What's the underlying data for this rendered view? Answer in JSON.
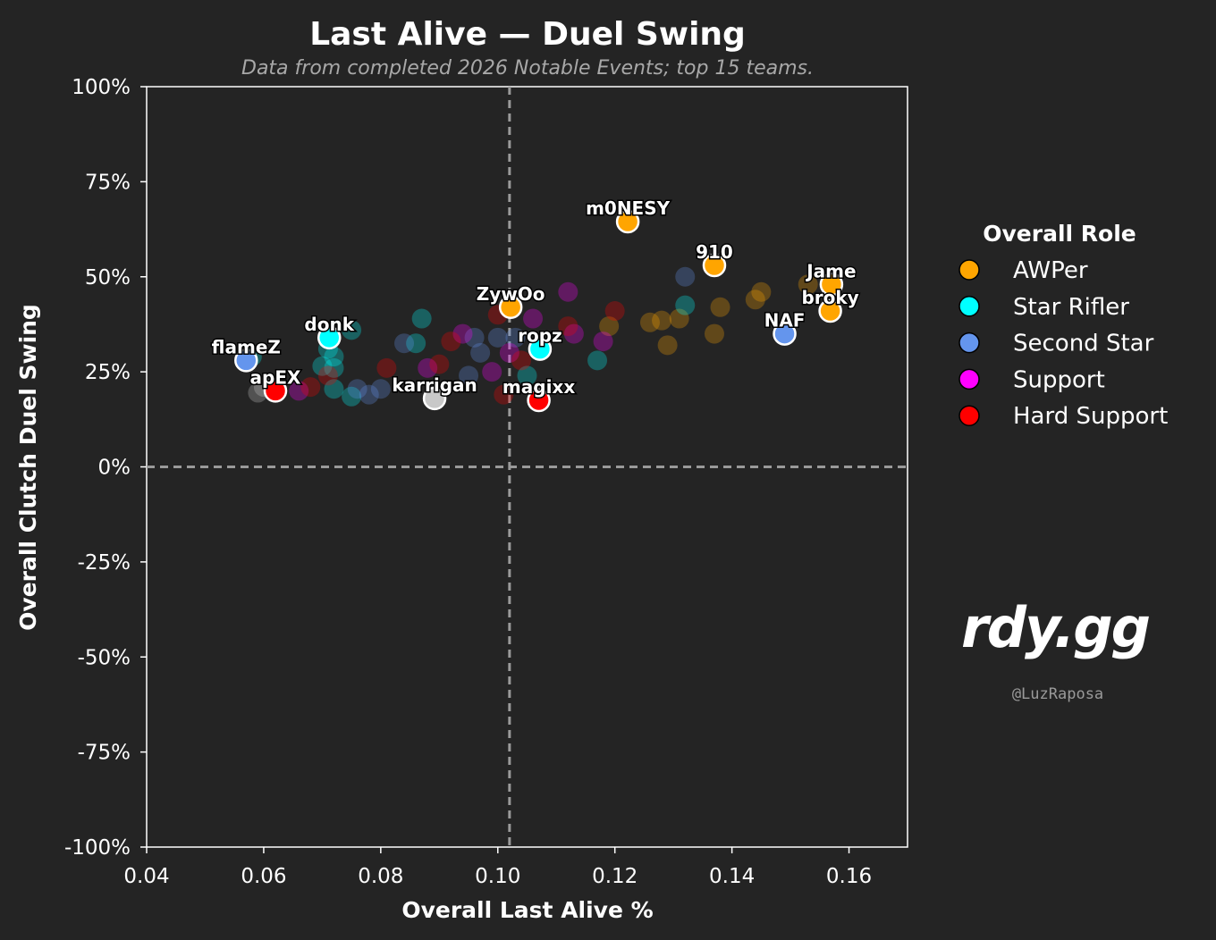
{
  "chart_data": {
    "type": "scatter",
    "title": "Last Alive — Duel Swing",
    "subtitle": "Data from completed 2026 Notable Events; top 15 teams.",
    "xlabel": "Overall Last Alive %",
    "ylabel": "Overall Clutch Duel Swing",
    "xlim": [
      0.04,
      0.17
    ],
    "ylim": [
      -1.0,
      1.0
    ],
    "x_ticks": [
      0.04,
      0.06,
      0.08,
      0.1,
      0.12,
      0.14,
      0.16
    ],
    "x_tick_labels": [
      "0.04",
      "0.06",
      "0.08",
      "0.10",
      "0.12",
      "0.14",
      "0.16"
    ],
    "y_ticks": [
      1.0,
      0.75,
      0.5,
      0.25,
      0.0,
      -0.25,
      -0.5,
      -0.75,
      -1.0
    ],
    "y_tick_labels": [
      "100%",
      "75%",
      "50%",
      "25%",
      "0%",
      "-25%",
      "-50%",
      "-75%",
      "-100%"
    ],
    "reference_lines": {
      "x": 0.102,
      "y": 0.0
    },
    "grid": false,
    "legend": {
      "title": "Overall Role",
      "placement": "right",
      "entries": [
        {
          "label": "AWPer",
          "color": "#ffa500"
        },
        {
          "label": "Star Rifler",
          "color": "#00ffff"
        },
        {
          "label": "Second Star",
          "color": "#6495ed"
        },
        {
          "label": "Support",
          "color": "#ff00ff"
        },
        {
          "label": "Hard Support",
          "color": "#ff0000"
        }
      ]
    },
    "highlighted": [
      {
        "name": "m0NESY",
        "x": 0.1222,
        "y": 0.645,
        "role": "AWPer"
      },
      {
        "name": "910",
        "x": 0.137,
        "y": 0.53,
        "role": "AWPer"
      },
      {
        "name": "Jame",
        "x": 0.157,
        "y": 0.48,
        "role": "AWPer"
      },
      {
        "name": "broky",
        "x": 0.1568,
        "y": 0.41,
        "role": "AWPer"
      },
      {
        "name": "ZywOo",
        "x": 0.1022,
        "y": 0.42,
        "role": "AWPer"
      },
      {
        "name": "NAF",
        "x": 0.149,
        "y": 0.35,
        "role": "Second Star"
      },
      {
        "name": "donk",
        "x": 0.0712,
        "y": 0.34,
        "role": "Star Rifler"
      },
      {
        "name": "ropz",
        "x": 0.1072,
        "y": 0.31,
        "role": "Star Rifler"
      },
      {
        "name": "flameZ",
        "x": 0.057,
        "y": 0.28,
        "role": "Second Star"
      },
      {
        "name": "apEX",
        "x": 0.062,
        "y": 0.2,
        "role": "Hard Support"
      },
      {
        "name": "karrigan",
        "x": 0.0892,
        "y": 0.18,
        "role": "Other"
      },
      {
        "name": "magixx",
        "x": 0.107,
        "y": 0.175,
        "role": "Hard Support"
      }
    ],
    "background_points": [
      {
        "x": 0.145,
        "y": 0.46,
        "role": "AWPer"
      },
      {
        "x": 0.144,
        "y": 0.44,
        "role": "AWPer"
      },
      {
        "x": 0.138,
        "y": 0.42,
        "role": "AWPer"
      },
      {
        "x": 0.137,
        "y": 0.35,
        "role": "AWPer"
      },
      {
        "x": 0.131,
        "y": 0.39,
        "role": "AWPer"
      },
      {
        "x": 0.128,
        "y": 0.385,
        "role": "AWPer"
      },
      {
        "x": 0.126,
        "y": 0.38,
        "role": "AWPer"
      },
      {
        "x": 0.129,
        "y": 0.32,
        "role": "AWPer"
      },
      {
        "x": 0.119,
        "y": 0.37,
        "role": "AWPer"
      },
      {
        "x": 0.153,
        "y": 0.48,
        "role": "AWPer"
      },
      {
        "x": 0.132,
        "y": 0.425,
        "role": "Star Rifler"
      },
      {
        "x": 0.117,
        "y": 0.28,
        "role": "Star Rifler"
      },
      {
        "x": 0.087,
        "y": 0.39,
        "role": "Star Rifler"
      },
      {
        "x": 0.086,
        "y": 0.325,
        "role": "Star Rifler"
      },
      {
        "x": 0.075,
        "y": 0.36,
        "role": "Star Rifler"
      },
      {
        "x": 0.071,
        "y": 0.31,
        "role": "Star Rifler"
      },
      {
        "x": 0.072,
        "y": 0.29,
        "role": "Star Rifler"
      },
      {
        "x": 0.072,
        "y": 0.26,
        "role": "Star Rifler"
      },
      {
        "x": 0.07,
        "y": 0.265,
        "role": "Star Rifler"
      },
      {
        "x": 0.072,
        "y": 0.205,
        "role": "Star Rifler"
      },
      {
        "x": 0.075,
        "y": 0.185,
        "role": "Star Rifler"
      },
      {
        "x": 0.058,
        "y": 0.29,
        "role": "Star Rifler"
      },
      {
        "x": 0.105,
        "y": 0.24,
        "role": "Star Rifler"
      },
      {
        "x": 0.132,
        "y": 0.5,
        "role": "Second Star"
      },
      {
        "x": 0.1,
        "y": 0.34,
        "role": "Second Star"
      },
      {
        "x": 0.096,
        "y": 0.34,
        "role": "Second Star"
      },
      {
        "x": 0.097,
        "y": 0.3,
        "role": "Second Star"
      },
      {
        "x": 0.084,
        "y": 0.325,
        "role": "Second Star"
      },
      {
        "x": 0.095,
        "y": 0.24,
        "role": "Second Star"
      },
      {
        "x": 0.078,
        "y": 0.19,
        "role": "Second Star"
      },
      {
        "x": 0.076,
        "y": 0.205,
        "role": "Second Star"
      },
      {
        "x": 0.08,
        "y": 0.205,
        "role": "Second Star"
      },
      {
        "x": 0.103,
        "y": 0.34,
        "role": "Second Star"
      },
      {
        "x": 0.112,
        "y": 0.46,
        "role": "Support"
      },
      {
        "x": 0.113,
        "y": 0.35,
        "role": "Support"
      },
      {
        "x": 0.118,
        "y": 0.33,
        "role": "Support"
      },
      {
        "x": 0.094,
        "y": 0.35,
        "role": "Support"
      },
      {
        "x": 0.099,
        "y": 0.25,
        "role": "Support"
      },
      {
        "x": 0.088,
        "y": 0.26,
        "role": "Support"
      },
      {
        "x": 0.066,
        "y": 0.2,
        "role": "Support"
      },
      {
        "x": 0.102,
        "y": 0.3,
        "role": "Support"
      },
      {
        "x": 0.106,
        "y": 0.39,
        "role": "Support"
      },
      {
        "x": 0.12,
        "y": 0.41,
        "role": "Hard Support"
      },
      {
        "x": 0.112,
        "y": 0.37,
        "role": "Hard Support"
      },
      {
        "x": 0.1,
        "y": 0.4,
        "role": "Hard Support"
      },
      {
        "x": 0.092,
        "y": 0.33,
        "role": "Hard Support"
      },
      {
        "x": 0.081,
        "y": 0.26,
        "role": "Hard Support"
      },
      {
        "x": 0.09,
        "y": 0.27,
        "role": "Hard Support"
      },
      {
        "x": 0.104,
        "y": 0.28,
        "role": "Hard Support"
      },
      {
        "x": 0.101,
        "y": 0.19,
        "role": "Hard Support"
      },
      {
        "x": 0.071,
        "y": 0.24,
        "role": "Hard Support"
      },
      {
        "x": 0.068,
        "y": 0.21,
        "role": "Hard Support"
      },
      {
        "x": 0.059,
        "y": 0.195,
        "role": "Other"
      },
      {
        "x": 0.06,
        "y": 0.21,
        "role": "Other"
      }
    ],
    "role_colors": {
      "AWPer": "#ffa500",
      "Star Rifler": "#00ffff",
      "Second Star": "#6495ed",
      "Support": "#ff00ff",
      "Hard Support": "#ff0000",
      "Other": "#c8c8c8"
    },
    "background_color": "#242424",
    "watermark": {
      "brand": "rdy.gg",
      "handle": "@LuzRaposa"
    }
  }
}
